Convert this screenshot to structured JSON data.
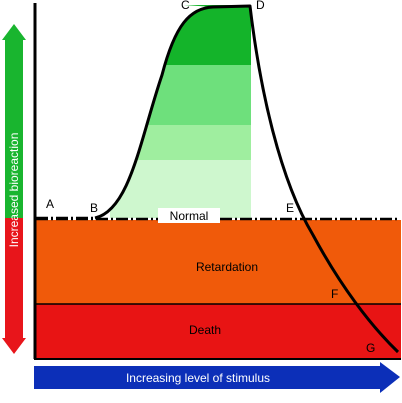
{
  "labels": {
    "y_arrow": "Increased bioreaction",
    "x_arrow": "Increasing level of stimulus",
    "normal": "Normal",
    "retardation": "Retardation",
    "death": "Death"
  },
  "points": {
    "a": "A",
    "b": "B",
    "c": "C",
    "d": "D",
    "e": "E",
    "f": "F",
    "g": "G"
  },
  "colors": {
    "y_arrow_top": "#19b52f",
    "y_arrow_bottom": "#e8151b",
    "x_arrow": "#0c2fb8",
    "peak_dark": "#14b42a",
    "peak_mid": "#6ee07c",
    "peak_light": "#9fee9f",
    "peak_pale": "#cef7ce",
    "retardation_zone": "#f05a0a",
    "death_zone": "#e81414",
    "curve": "#000000"
  }
}
